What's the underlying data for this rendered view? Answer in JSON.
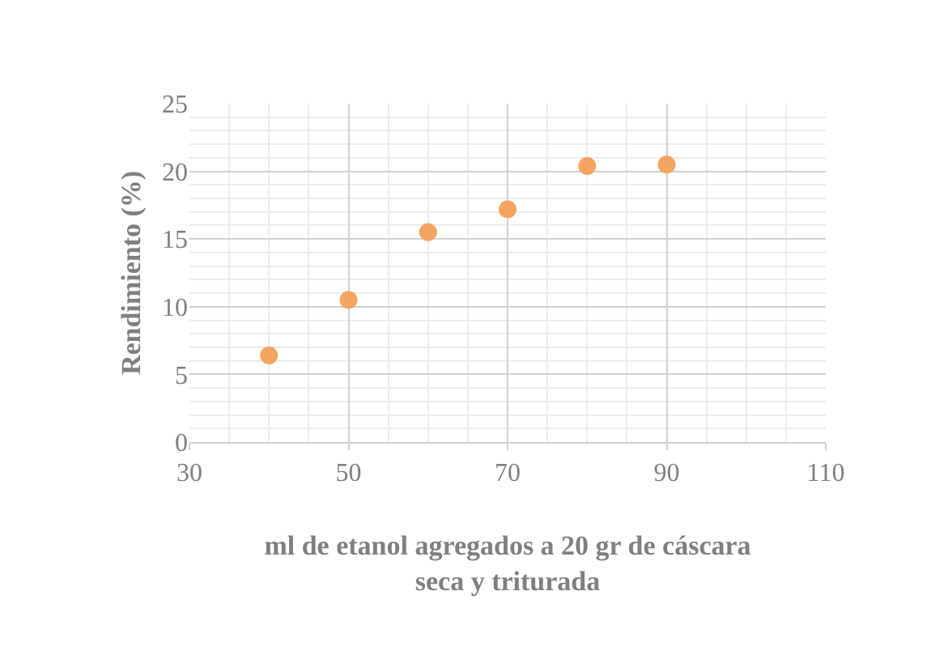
{
  "chart_data": {
    "type": "scatter",
    "xlabel": "ml de etanol agregados a 20 gr de cáscara seca y triturada",
    "ylabel": "Rendimiento (%)",
    "x": [
      40,
      50,
      60,
      70,
      80,
      90
    ],
    "series": [
      {
        "color": "#f4a460",
        "values": [
          6.4,
          10.5,
          15.5,
          17.2,
          20.4,
          20.5
        ]
      }
    ],
    "xlim": [
      30,
      110
    ],
    "xticks": [
      30,
      50,
      70,
      90,
      110
    ],
    "ylim": [
      0,
      25
    ],
    "yticks": [
      0,
      5,
      10,
      15,
      20,
      25
    ],
    "grid": true,
    "marker": "circle"
  }
}
